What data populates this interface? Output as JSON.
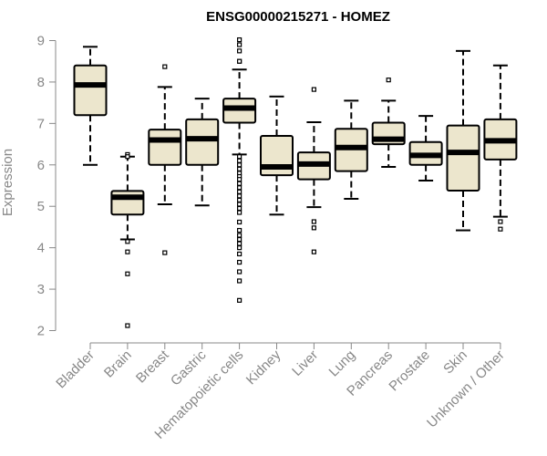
{
  "chart_data": {
    "type": "box",
    "title": "ENSG00000215271 - HOMEZ",
    "ylabel": "Expression",
    "xlabel": "",
    "ylim": [
      2,
      9
    ],
    "yticks": [
      2,
      3,
      4,
      5,
      6,
      7,
      8,
      9
    ],
    "box_fill": "#ece6cd",
    "grid": false,
    "categories": [
      "Bladder",
      "Brain",
      "Breast",
      "Gastric",
      "Hematopoietic cells",
      "Kidney",
      "Liver",
      "Lung",
      "Pancreas",
      "Prostate",
      "Skin",
      "Unknown / Other"
    ],
    "boxes": [
      {
        "whisker_low": 6.0,
        "q1": 7.2,
        "median": 7.93,
        "q3": 8.4,
        "whisker_high": 8.85,
        "outliers": []
      },
      {
        "whisker_low": 4.2,
        "q1": 4.8,
        "median": 5.22,
        "q3": 5.37,
        "whisker_high": 6.2,
        "outliers": [
          6.25,
          6.2,
          4.15,
          3.9,
          3.37,
          2.12
        ]
      },
      {
        "whisker_low": 5.05,
        "q1": 6.0,
        "median": 6.6,
        "q3": 6.85,
        "whisker_high": 7.88,
        "outliers": [
          8.37,
          3.88
        ]
      },
      {
        "whisker_low": 5.02,
        "q1": 6.0,
        "median": 6.63,
        "q3": 7.1,
        "whisker_high": 7.6,
        "outliers": []
      },
      {
        "whisker_low": 6.25,
        "q1": 7.02,
        "median": 7.37,
        "q3": 7.6,
        "whisker_high": 8.3,
        "outliers": [
          9.02,
          8.9,
          8.75,
          8.5,
          8.5,
          6.2,
          6.1,
          6.0,
          5.9,
          5.8,
          5.72,
          5.65,
          5.55,
          5.45,
          5.35,
          5.25,
          5.15,
          5.05,
          4.95,
          4.85,
          4.62,
          4.42,
          4.3,
          4.2,
          4.1,
          4.0,
          3.85,
          3.65,
          3.42,
          3.2,
          2.73
        ]
      },
      {
        "whisker_low": 4.8,
        "q1": 5.75,
        "median": 5.95,
        "q3": 6.7,
        "whisker_high": 7.65,
        "outliers": []
      },
      {
        "whisker_low": 4.98,
        "q1": 5.65,
        "median": 6.02,
        "q3": 6.3,
        "whisker_high": 7.03,
        "outliers": [
          7.82,
          4.63,
          4.48,
          3.9
        ]
      },
      {
        "whisker_low": 5.18,
        "q1": 5.85,
        "median": 6.42,
        "q3": 6.87,
        "whisker_high": 7.55,
        "outliers": []
      },
      {
        "whisker_low": 5.95,
        "q1": 6.5,
        "median": 6.62,
        "q3": 7.02,
        "whisker_high": 7.55,
        "outliers": [
          8.05
        ]
      },
      {
        "whisker_low": 5.62,
        "q1": 6.0,
        "median": 6.23,
        "q3": 6.55,
        "whisker_high": 7.18,
        "outliers": []
      },
      {
        "whisker_low": 4.42,
        "q1": 5.38,
        "median": 6.3,
        "q3": 6.95,
        "whisker_high": 8.75,
        "outliers": []
      },
      {
        "whisker_low": 4.75,
        "q1": 6.13,
        "median": 6.58,
        "q3": 7.1,
        "whisker_high": 8.4,
        "outliers": [
          4.63,
          4.45
        ]
      }
    ]
  }
}
